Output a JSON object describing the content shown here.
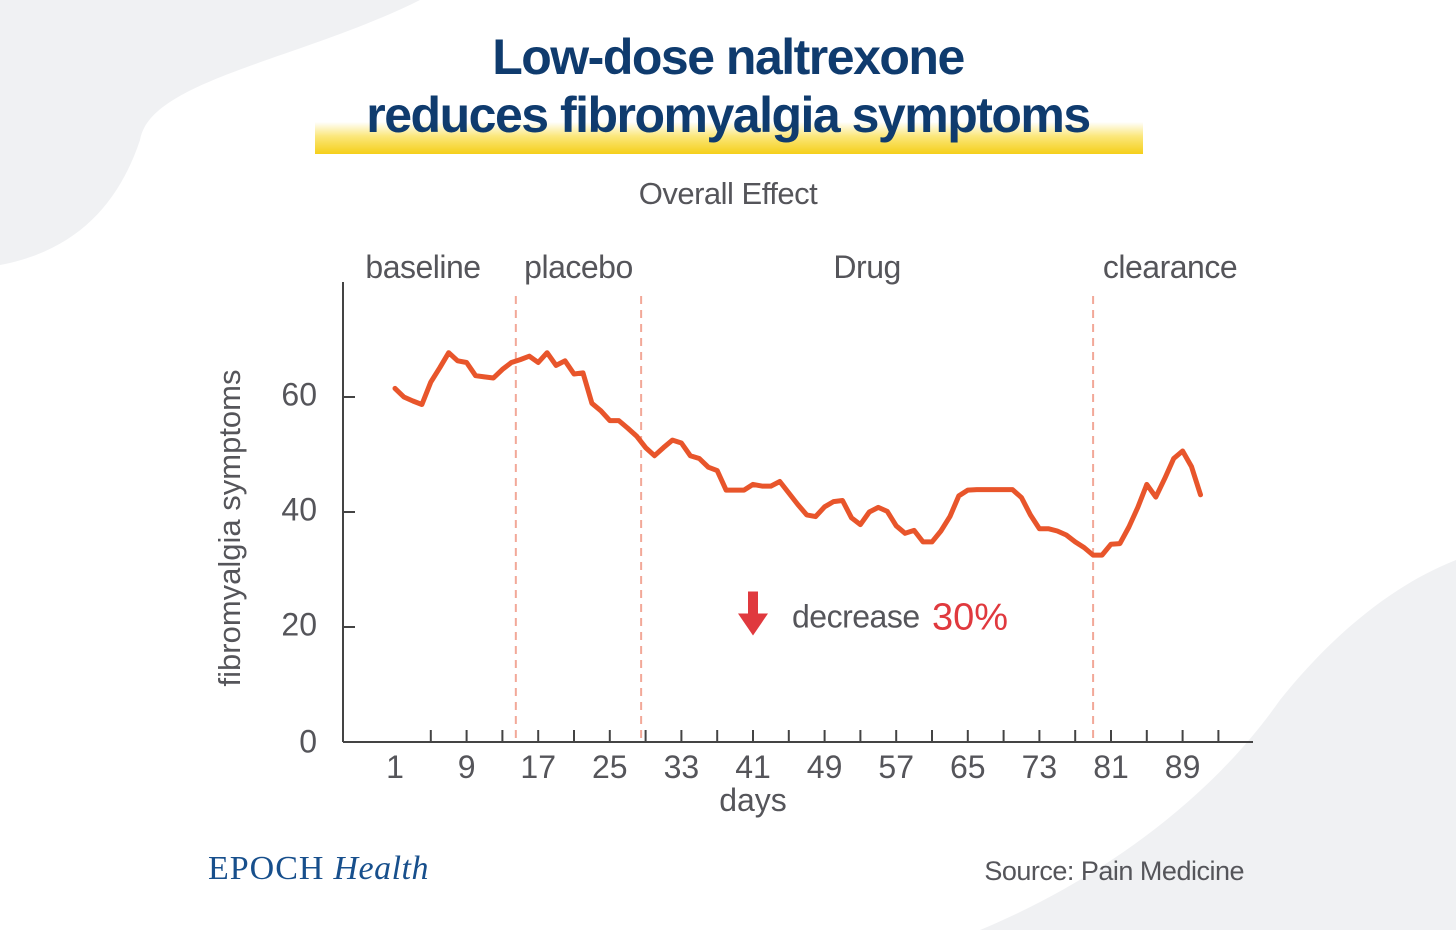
{
  "title": {
    "line1": "Low-dose naltrexone",
    "line2": "reduces fibromyalgia symptoms"
  },
  "brand": {
    "part1": "EPOCH",
    "part2": "Health"
  },
  "source": "Source: Pain Medicine",
  "colors": {
    "title": "#0f3b6e",
    "highlight": "#f5cf1a",
    "line": "#e8552b",
    "divider": "#f2a898",
    "accent": "#e0393e",
    "text": "#55555a"
  },
  "chart_data": {
    "type": "line",
    "title": "Overall Effect",
    "xlabel": "days",
    "ylabel": "fibromyalgia symptoms",
    "xlim": [
      -4,
      100
    ],
    "ylim": [
      0,
      80
    ],
    "xticks": [
      1,
      9,
      17,
      25,
      33,
      41,
      49,
      57,
      65,
      73,
      81,
      89
    ],
    "yticks": [
      0,
      20,
      40,
      60
    ],
    "phases": [
      {
        "label": "baseline",
        "start": -4,
        "end": 14.5
      },
      {
        "label": "placebo",
        "start": 14.5,
        "end": 28.5
      },
      {
        "label": "Drug",
        "start": 28.5,
        "end": 79
      },
      {
        "label": "clearance",
        "start": 79,
        "end": 100
      }
    ],
    "dividers": [
      14.5,
      28.5,
      79
    ],
    "annotation": {
      "text": "decrease",
      "value": "30%",
      "x": 41,
      "y": 22
    },
    "series": [
      {
        "name": "fibromyalgia symptoms",
        "x": [
          1,
          2,
          3,
          4,
          5,
          6,
          7,
          8,
          9,
          10,
          11,
          12,
          13,
          14,
          15,
          16,
          17,
          18,
          19,
          20,
          21,
          22,
          23,
          24,
          25,
          26,
          27,
          28,
          29,
          30,
          31,
          32,
          33,
          34,
          35,
          36,
          37,
          38,
          39,
          40,
          41,
          42,
          43,
          44,
          45,
          46,
          47,
          48,
          49,
          50,
          51,
          52,
          53,
          54,
          55,
          56,
          57,
          58,
          59,
          60,
          61,
          62,
          63,
          64,
          65,
          66,
          67,
          68,
          69,
          70,
          71,
          72,
          73,
          74,
          75,
          76,
          77,
          78,
          79,
          80,
          81,
          82,
          83,
          84,
          85,
          86,
          87,
          88,
          89,
          90,
          91
        ],
        "values": [
          61.5,
          60.0,
          59.3,
          58.7,
          62.6,
          65.1,
          67.7,
          66.3,
          66.0,
          63.7,
          63.5,
          63.3,
          64.8,
          66.0,
          66.5,
          67.1,
          66.0,
          67.7,
          65.5,
          66.3,
          64.0,
          64.2,
          58.9,
          57.6,
          55.9,
          55.9,
          54.6,
          53.2,
          51.2,
          49.8,
          51.2,
          52.5,
          52.0,
          49.8,
          49.3,
          47.8,
          47.2,
          43.8,
          43.8,
          43.8,
          44.8,
          44.5,
          44.5,
          45.3,
          43.3,
          41.3,
          39.5,
          39.2,
          40.9,
          41.8,
          42.0,
          39.0,
          37.8,
          40.0,
          40.8,
          40.1,
          37.6,
          36.3,
          36.8,
          34.8,
          34.8,
          36.7,
          39.2,
          42.8,
          43.8,
          43.9,
          43.9,
          43.9,
          43.9,
          43.9,
          42.5,
          39.5,
          37.1,
          37.1,
          36.7,
          36.0,
          34.8,
          33.8,
          32.5,
          32.5,
          34.4,
          34.5,
          37.4,
          40.8,
          44.8,
          42.6,
          45.8,
          49.3,
          50.6,
          47.9,
          43.0
        ]
      }
    ]
  }
}
